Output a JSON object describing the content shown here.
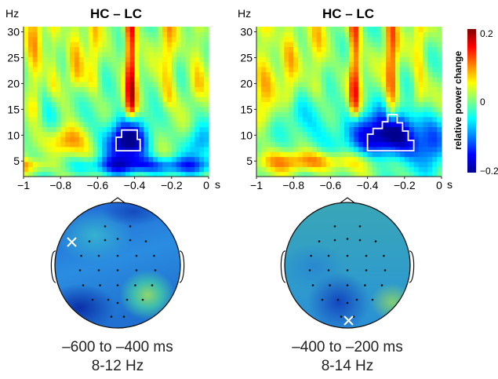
{
  "figure": {
    "panels": [
      {
        "title": "HC – LC",
        "y_unit": "Hz",
        "x_unit": "s",
        "x_ticks": [
          "−1",
          "−0.8",
          "−0.6",
          "−0.4",
          "−0.2",
          "0"
        ],
        "y_ticks": [
          "30",
          "25",
          "20",
          "15",
          "10",
          "5"
        ]
      },
      {
        "title": "HC – LC",
        "y_unit": "Hz",
        "x_unit": "s",
        "x_ticks": [
          "−1",
          "−0.8",
          "−0.6",
          "−0.4",
          "−0.2",
          "0"
        ],
        "y_ticks": [
          "30",
          "25",
          "20",
          "15",
          "10",
          "5"
        ]
      }
    ],
    "colorbar": {
      "label": "relative power change",
      "ticks": [
        "0.2",
        "0",
        "−0.2"
      ],
      "colormap": [
        "#00008f",
        "#0000ff",
        "#0080ff",
        "#00ffff",
        "#80ff80",
        "#ffff00",
        "#ff8000",
        "#ff0000",
        "#800000"
      ]
    },
    "topos": [
      {
        "time_window": "–600 to –400 ms",
        "freq_band": "8-12 Hz"
      },
      {
        "time_window": "–400 to –200 ms",
        "freq_band": "8-14 Hz"
      }
    ]
  },
  "chart_data": [
    {
      "type": "heatmap",
      "title": "HC – LC",
      "xlabel": "s",
      "ylabel": "Hz",
      "xlim": [
        -1,
        0
      ],
      "ylim": [
        2,
        31
      ],
      "clim": [
        -0.2,
        0.2
      ],
      "significant_cluster": {
        "time_range": [
          -0.5,
          -0.37
        ],
        "freq_range": [
          7,
          11
        ]
      },
      "notable_features": [
        {
          "kind": "positive",
          "time": -0.42,
          "freq_range": [
            18,
            31
          ]
        },
        {
          "kind": "positive",
          "time": -0.75,
          "freq": 9
        },
        {
          "kind": "positive",
          "time": -0.95,
          "freq_range": [
            3,
            6
          ]
        },
        {
          "kind": "negative",
          "time": -0.45,
          "freq": 9
        },
        {
          "kind": "negative",
          "time_range": [
            -0.6,
            0
          ],
          "freq_range": [
            3,
            6
          ]
        }
      ]
    },
    {
      "type": "heatmap",
      "title": "HC – LC",
      "xlabel": "s",
      "ylabel": "Hz",
      "xlim": [
        -1,
        0
      ],
      "ylim": [
        2,
        31
      ],
      "clim": [
        -0.2,
        0.2
      ],
      "significant_cluster": {
        "time_range": [
          -0.4,
          -0.15
        ],
        "freq_range": [
          7,
          14
        ]
      },
      "notable_features": [
        {
          "kind": "positive",
          "time": -0.6,
          "freq_range": [
            3,
            7
          ]
        },
        {
          "kind": "positive",
          "time": -0.47,
          "freq_range": [
            18,
            31
          ]
        },
        {
          "kind": "positive",
          "time": -0.27,
          "freq_range": [
            16,
            31
          ]
        },
        {
          "kind": "negative",
          "time": -0.27,
          "freq": 10
        }
      ]
    }
  ]
}
